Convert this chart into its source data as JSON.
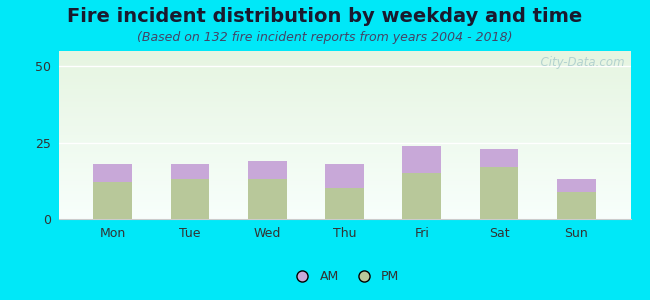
{
  "title": "Fire incident distribution by weekday and time",
  "subtitle": "(Based on 132 fire incident reports from years 2004 - 2018)",
  "categories": [
    "Mon",
    "Tue",
    "Wed",
    "Thu",
    "Fri",
    "Sat",
    "Sun"
  ],
  "pm_values": [
    12,
    13,
    13,
    10,
    15,
    17,
    9
  ],
  "am_values": [
    6,
    5,
    6,
    8,
    9,
    6,
    4
  ],
  "am_color": "#c8a8d8",
  "pm_color": "#b8c89a",
  "background_outer": "#00e8f8",
  "background_inner_top": "#e6f4e0",
  "background_inner_bottom": "#f0faf8",
  "ylim": [
    0,
    55
  ],
  "yticks": [
    0,
    25,
    50
  ],
  "watermark": "  City-Data.com",
  "legend_am": "AM",
  "legend_pm": "PM",
  "title_fontsize": 14,
  "subtitle_fontsize": 9,
  "tick_fontsize": 9,
  "legend_fontsize": 9,
  "title_color": "#1a1a2e",
  "subtitle_color": "#444466"
}
